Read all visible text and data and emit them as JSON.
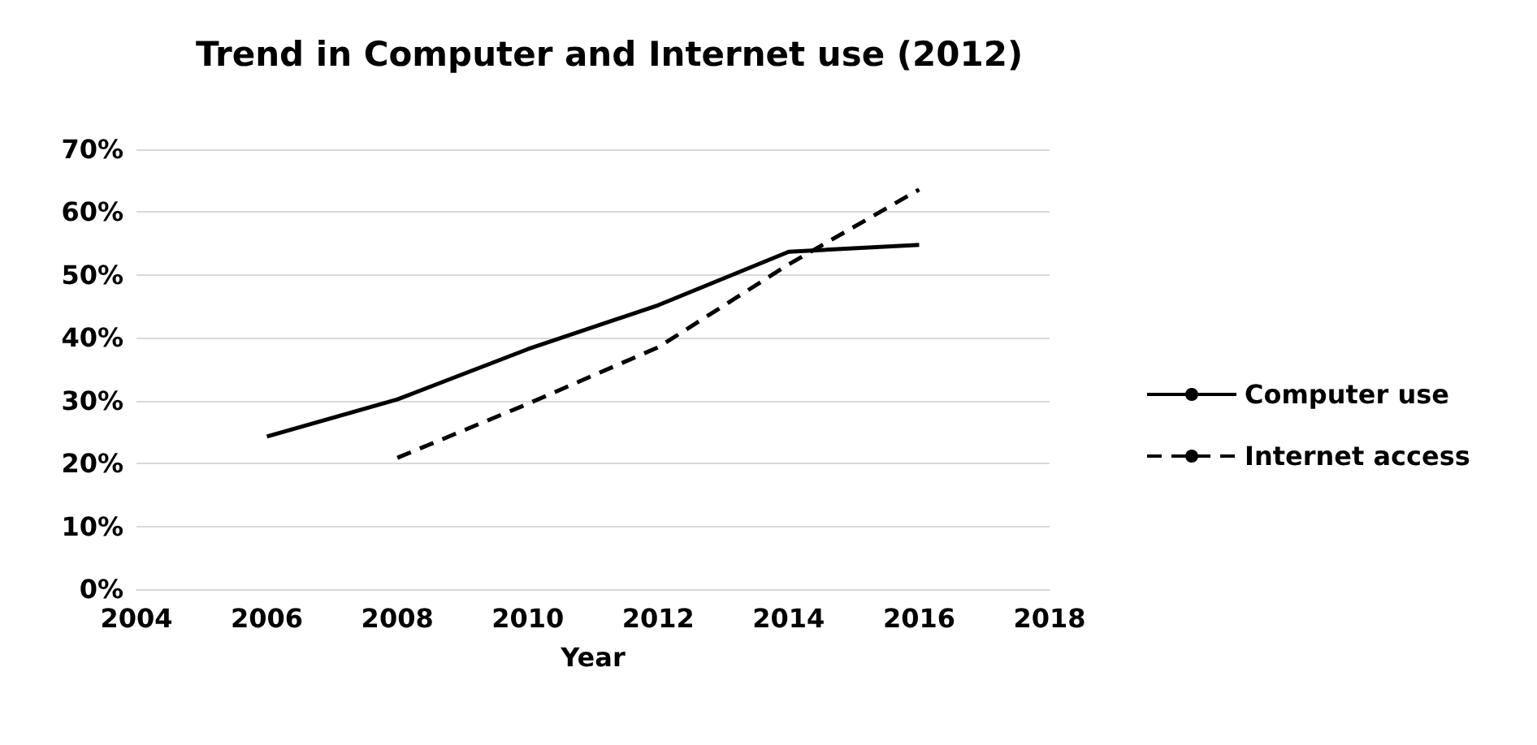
{
  "chart_data": {
    "type": "line",
    "title": "Trend in Computer and Internet use (2012)",
    "xlabel": "Year",
    "xlim": [
      2004,
      2018
    ],
    "xticks": [
      2004,
      2006,
      2008,
      2010,
      2012,
      2014,
      2016,
      2018
    ],
    "ylim": [
      0,
      70
    ],
    "yticks": [
      {
        "value": 0,
        "label": "0%"
      },
      {
        "value": 10,
        "label": "10%"
      },
      {
        "value": 20,
        "label": "20%"
      },
      {
        "value": 30,
        "label": "30%"
      },
      {
        "value": 40,
        "label": "40%"
      },
      {
        "value": 50,
        "label": "50%"
      },
      {
        "value": 60,
        "label": "60%"
      },
      {
        "value": 70,
        "label": "70%"
      }
    ],
    "grid": "y",
    "legend": "right",
    "marker": "none",
    "series": [
      {
        "name": "Computer use",
        "color": "#000000",
        "line_style": "solid",
        "x": [
          2006,
          2008,
          2010,
          2012,
          2014,
          2016
        ],
        "values": [
          24.3,
          30.2,
          38.2,
          45.2,
          53.7,
          54.8
        ]
      },
      {
        "name": "Internet access",
        "color": "#000000",
        "line_style": "dashed",
        "x": [
          2008,
          2010,
          2012,
          2014,
          2016
        ],
        "values": [
          20.9,
          29.5,
          38.5,
          51.7,
          63.6
        ]
      }
    ]
  }
}
